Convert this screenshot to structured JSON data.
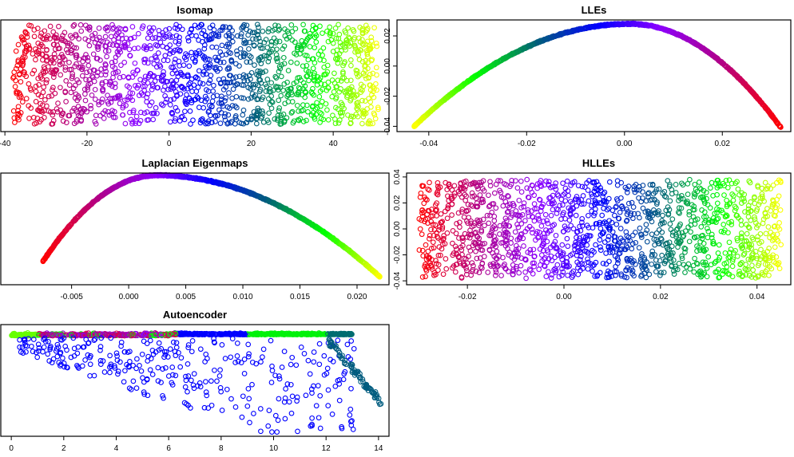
{
  "chart_data": [
    {
      "type": "scatter",
      "title": "Isomap",
      "xlim": [
        -41,
        53.6
      ],
      "ylim": [
        -0.045,
        0.03
      ],
      "xticks": [
        -40,
        -20,
        0,
        20,
        40
      ],
      "yticks": [],
      "shape": "uniform rectangle, color by x (red at left, yellow at right)",
      "x_range_points": [
        -38,
        51
      ]
    },
    {
      "type": "scatter",
      "title": "LLEs",
      "xlim": [
        -0.0465,
        0.034
      ],
      "ylim": [
        -0.0435,
        0.0306
      ],
      "xticks": [
        "-0.04",
        "-0.02",
        "0.00",
        "0.02"
      ],
      "yticks": [
        "0.02",
        "0.00",
        "-0.02",
        "-0.04"
      ],
      "shape": "arc",
      "curve": {
        "left_end": [
          -0.043,
          -0.04
        ],
        "peak": [
          0.001,
          0.028
        ],
        "right_end": [
          0.032,
          -0.041
        ]
      }
    },
    {
      "type": "scatter",
      "title": "Laplacian Eigenmaps",
      "xlim": [
        -0.0112,
        0.0228
      ],
      "ylim": [
        0,
        1
      ],
      "xticks": [
        "-0.005",
        "0.000",
        "0.005",
        "0.010",
        "0.015",
        "0.020"
      ],
      "yticks": [],
      "shape": "arc",
      "curve": {
        "left_end": [
          -0.0075,
          0.21
        ],
        "peak": [
          0.0025,
          0.98
        ],
        "right_end": [
          0.022,
          0.07
        ]
      }
    },
    {
      "type": "scatter",
      "title": "HLLEs",
      "xlim": [
        -0.0326,
        0.047
      ],
      "ylim": [
        -0.043,
        0.043
      ],
      "xticks": [
        "-0.02",
        "0.00",
        "0.02",
        "0.04"
      ],
      "yticks": [
        "0.04",
        "0.02",
        "0.00",
        "-0.02",
        "-0.04"
      ],
      "shape": "uniform rectangle, color by x (red at left, yellow at right)",
      "x_range_points": [
        -0.03,
        0.045
      ]
    },
    {
      "type": "scatter",
      "title": "Autoencoder",
      "xlim": [
        -0.4,
        14.4
      ],
      "ylim": [
        0,
        1
      ],
      "xticks": [
        0,
        2,
        4,
        6,
        8,
        10,
        12,
        14
      ],
      "yticks": [],
      "shape": "dense band near top with scattered blue points below and a teal tail descending toward x=14"
    }
  ],
  "colors": {
    "gradient": [
      "#ff0000",
      "#b0008a",
      "#8a00ff",
      "#0000ff",
      "#00607a",
      "#00ff00",
      "#ffff00"
    ],
    "background": "#ffffff",
    "axis": "#000000"
  }
}
